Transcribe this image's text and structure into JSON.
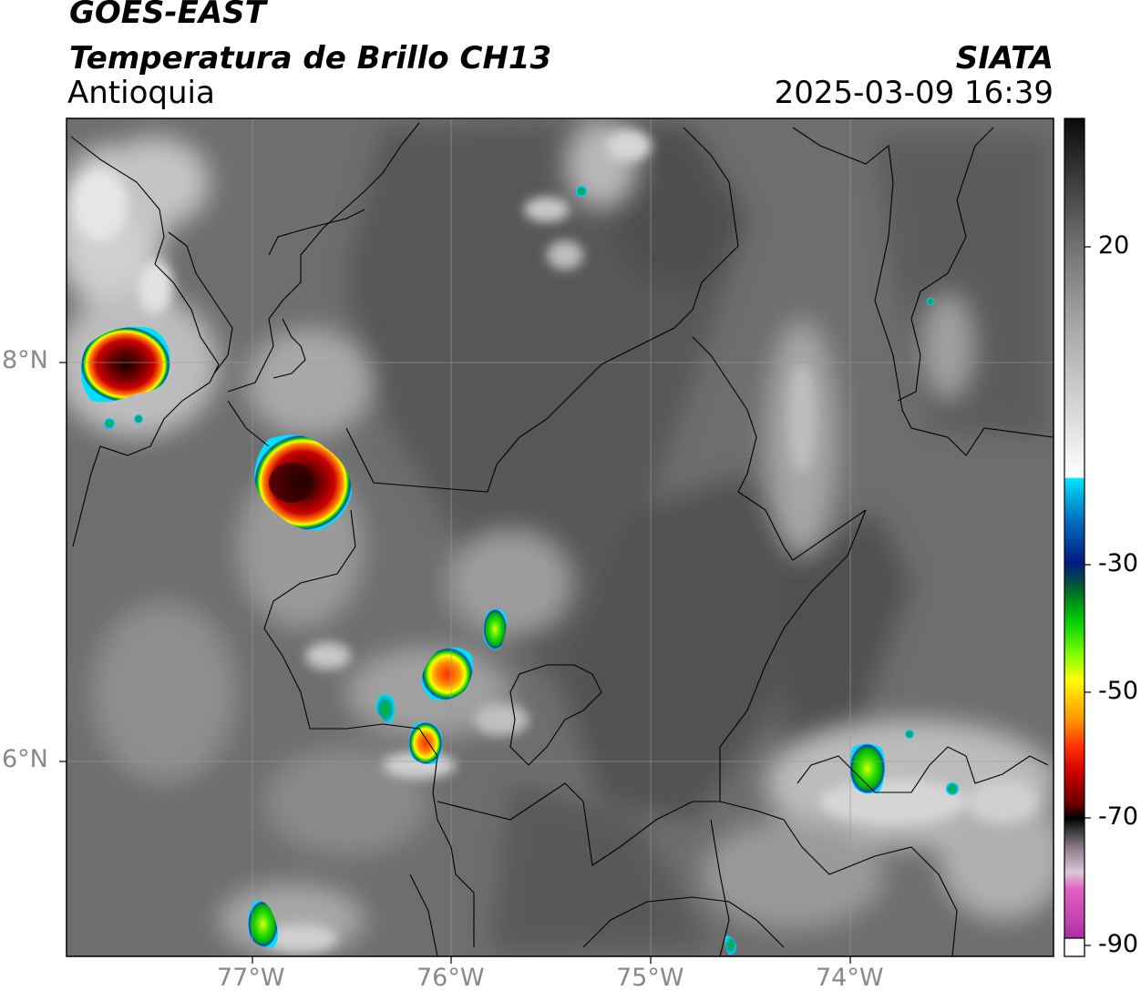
{
  "header": {
    "satellite": "GOES-EAST",
    "product": "Temperatura de Brillo CH13",
    "region": "Antioquia",
    "agency": "SIATA",
    "datetime": "2025-03-09 16:39"
  },
  "axes": {
    "x_ticks": [
      "77°W",
      "76°W",
      "75°W",
      "74°W"
    ],
    "y_ticks": [
      "8°N",
      "6°N"
    ],
    "lon_range": [
      -77.95,
      -73.0
    ],
    "lat_range": [
      4.95,
      9.2
    ]
  },
  "colorbar": {
    "ticks": [
      "20",
      "-30",
      "-50",
      "-70",
      "-90"
    ],
    "range": [
      -90,
      40
    ],
    "colors": {
      "warm_gray_top": "#111111",
      "cold_white": "#ffffff",
      "cyan": "#00e5ff",
      "blue": "#0033a0",
      "green": "#00d000",
      "yellow": "#ffff00",
      "orange": "#ff8000",
      "red": "#e00000",
      "dark_red": "#5a0000",
      "magenta": "#e040c0",
      "purple": "#800080"
    }
  },
  "colors": {
    "background_gray": "#6f6f6f",
    "border": "#000000",
    "grid": "#9a9a9a"
  }
}
